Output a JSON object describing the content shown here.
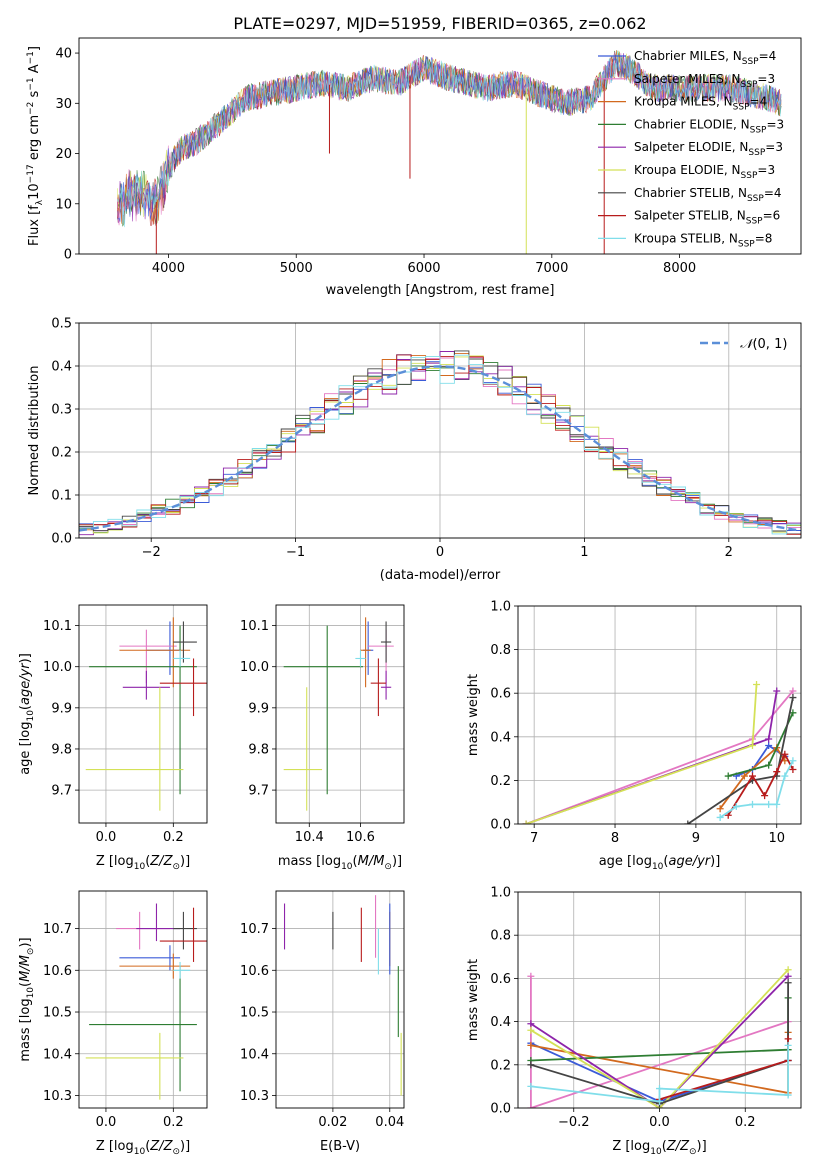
{
  "title": "PLATE=0297, MJD=51959, FIBERID=0365, z=0.062",
  "colors": {
    "Chabrier MILES": "#3b5bd8",
    "Salpeter MILES": "#e377c2",
    "Kroupa MILES": "#d2691e",
    "Chabrier ELODIE": "#2e7d32",
    "Salpeter ELODIE": "#8e24aa",
    "Kroupa ELODIE": "#d4e157",
    "Chabrier STELIB": "#444444",
    "Salpeter STELIB": "#b71c1c",
    "Kroupa STELIB": "#80deea",
    "gaussian": "#5b8fd8"
  },
  "chart_data": [
    {
      "type": "line",
      "title": "PLATE=0297, MJD=51959, FIBERID=0365, z=0.062",
      "xlabel": "wavelength [Angstrom, rest frame]",
      "ylabel": "Flux [fλ10⁻¹⁷ erg cm⁻² s⁻¹ A⁻¹]",
      "xlim": [
        3300,
        8950
      ],
      "ylim": [
        0,
        43
      ],
      "xticks": [
        4000,
        5000,
        6000,
        7000,
        8000
      ],
      "yticks": [
        0,
        10,
        20,
        30,
        40
      ],
      "legend_position": "right",
      "legend": [
        "Chabrier MILES, N_SSP=4",
        "Salpeter MILES, N_SSP=3",
        "Kroupa MILES, N_SSP=4",
        "Chabrier ELODIE, N_SSP=3",
        "Salpeter ELODIE, N_SSP=3",
        "Kroupa ELODIE, N_SSP=3",
        "Chabrier STELIB, N_SSP=4",
        "Salpeter STELIB, N_SSP=6",
        "Kroupa STELIB, N_SSP=8"
      ],
      "spectrum_envelope": [
        [
          3600,
          9
        ],
        [
          3700,
          12
        ],
        [
          3800,
          12
        ],
        [
          3900,
          10
        ],
        [
          4000,
          17
        ],
        [
          4100,
          21
        ],
        [
          4200,
          22
        ],
        [
          4300,
          24
        ],
        [
          4400,
          26
        ],
        [
          4600,
          31
        ],
        [
          4800,
          32
        ],
        [
          5000,
          33
        ],
        [
          5200,
          34
        ],
        [
          5400,
          33
        ],
        [
          5600,
          35
        ],
        [
          5800,
          34
        ],
        [
          6000,
          37
        ],
        [
          6200,
          35
        ],
        [
          6500,
          33
        ],
        [
          6700,
          34
        ],
        [
          6900,
          32
        ],
        [
          7100,
          30
        ],
        [
          7300,
          31
        ],
        [
          7500,
          38
        ],
        [
          7600,
          37
        ],
        [
          7800,
          33
        ],
        [
          8100,
          33
        ],
        [
          8400,
          33
        ],
        [
          8700,
          31
        ],
        [
          8800,
          30
        ]
      ],
      "series_wavelength_range": [
        3600,
        8800
      ]
    },
    {
      "type": "line",
      "xlabel": "(data-model)/error",
      "ylabel": "Normed distribution",
      "xlim": [
        -2.5,
        2.5
      ],
      "ylim": [
        0,
        0.5
      ],
      "xticks": [
        -2,
        -1,
        0,
        1,
        2
      ],
      "yticks": [
        0.0,
        0.1,
        0.2,
        0.3,
        0.4,
        0.5
      ],
      "legend": [
        "N(0,1)"
      ],
      "legend_position": "top-right",
      "histogram_bin_width": 0.1,
      "histograms": "one step histogram per fit, centred on the N(0,1) curve"
    },
    {
      "type": "scatter",
      "xlabel": "Z [log10(Z/Z⊙)]",
      "ylabel": "age  [log10(age/yr)]",
      "xlim": [
        -0.08,
        0.3
      ],
      "ylim": [
        9.62,
        10.15
      ],
      "xticks": [
        0.0,
        0.2
      ],
      "yticks": [
        9.7,
        9.8,
        9.9,
        10.0,
        10.1
      ],
      "points": [
        {
          "name": "Chabrier MILES",
          "x": 0.19,
          "y": 10.04,
          "xerr": [
            0.07,
            0.03
          ],
          "yerr": [
            0.06,
            0.07
          ]
        },
        {
          "name": "Salpeter MILES",
          "x": 0.12,
          "y": 10.05,
          "xerr": [
            0.08,
            0.09
          ],
          "yerr": [
            0.09,
            0.04
          ]
        },
        {
          "name": "Kroupa MILES",
          "x": 0.2,
          "y": 10.04,
          "xerr": [
            0.16,
            0.05
          ],
          "yerr": [
            0.09,
            0.08
          ]
        },
        {
          "name": "Chabrier ELODIE",
          "x": 0.22,
          "y": 10.0,
          "xerr": [
            0.27,
            0.05
          ],
          "yerr": [
            0.31,
            0.1
          ]
        },
        {
          "name": "Salpeter ELODIE",
          "x": 0.12,
          "y": 9.95,
          "xerr": [
            0.07,
            0.07
          ],
          "yerr": [
            0.03,
            0.04
          ]
        },
        {
          "name": "Kroupa ELODIE",
          "x": 0.16,
          "y": 9.75,
          "xerr": [
            0.22,
            0.07
          ],
          "yerr": [
            0.1,
            0.2
          ]
        },
        {
          "name": "Chabrier STELIB",
          "x": 0.23,
          "y": 10.06,
          "xerr": [
            0.03,
            0.04
          ],
          "yerr": [
            0.05,
            0.05
          ]
        },
        {
          "name": "Salpeter STELIB",
          "x": 0.26,
          "y": 9.96,
          "xerr": [
            0.1,
            0.05
          ],
          "yerr": [
            0.08,
            0.06
          ]
        },
        {
          "name": "Kroupa STELIB",
          "x": 0.22,
          "y": 10.02,
          "xerr": [
            0.02,
            0.03
          ],
          "yerr": [
            0.02,
            0.02
          ]
        }
      ]
    },
    {
      "type": "scatter",
      "xlabel": "mass [log10(M/M⊙)]",
      "ylabel": "",
      "xlim": [
        10.27,
        10.77
      ],
      "ylim": [
        9.62,
        10.15
      ],
      "xticks": [
        10.4,
        10.6
      ],
      "yticks": [
        9.7,
        9.8,
        9.9,
        10.0,
        10.1
      ],
      "points": [
        {
          "name": "Chabrier MILES",
          "x": 10.63,
          "y": 10.04,
          "xerr": [
            0.02,
            0.02
          ],
          "yerr": [
            0.06,
            0.07
          ]
        },
        {
          "name": "Salpeter MILES",
          "x": 10.7,
          "y": 10.05,
          "xerr": [
            0.07,
            0.03
          ],
          "yerr": [
            0.09,
            0.04
          ]
        },
        {
          "name": "Kroupa MILES",
          "x": 10.62,
          "y": 10.04,
          "xerr": [
            0.02,
            0.02
          ],
          "yerr": [
            0.09,
            0.08
          ]
        },
        {
          "name": "Chabrier ELODIE",
          "x": 10.47,
          "y": 10.0,
          "xerr": [
            0.17,
            0.14
          ],
          "yerr": [
            0.31,
            0.1
          ]
        },
        {
          "name": "Salpeter ELODIE",
          "x": 10.7,
          "y": 9.95,
          "xerr": [
            0.02,
            0.02
          ],
          "yerr": [
            0.03,
            0.04
          ]
        },
        {
          "name": "Kroupa ELODIE",
          "x": 10.39,
          "y": 9.75,
          "xerr": [
            0.09,
            0.06
          ],
          "yerr": [
            0.1,
            0.2
          ]
        },
        {
          "name": "Chabrier STELIB",
          "x": 10.7,
          "y": 10.06,
          "xerr": [
            0.02,
            0.02
          ],
          "yerr": [
            0.05,
            0.05
          ]
        },
        {
          "name": "Salpeter STELIB",
          "x": 10.67,
          "y": 9.96,
          "xerr": [
            0.03,
            0.03
          ],
          "yerr": [
            0.08,
            0.06
          ]
        },
        {
          "name": "Kroupa STELIB",
          "x": 10.6,
          "y": 10.02,
          "xerr": [
            0.02,
            0.02
          ],
          "yerr": [
            0.02,
            0.02
          ]
        }
      ]
    },
    {
      "type": "line",
      "xlabel": "age  [log10(age/yr)]",
      "ylabel": "mass weight",
      "xlim": [
        6.8,
        10.3
      ],
      "ylim": [
        0,
        1
      ],
      "xticks": [
        7,
        8,
        9,
        10
      ],
      "yticks": [
        0.0,
        0.2,
        0.4,
        0.6,
        0.8,
        1.0
      ],
      "series": [
        {
          "name": "Chabrier MILES",
          "x": [
            9.5,
            9.7,
            9.9,
            10.1
          ],
          "y": [
            0.22,
            0.25,
            0.36,
            0.31
          ]
        },
        {
          "name": "Salpeter MILES",
          "x": [
            6.9,
            9.7,
            10.2
          ],
          "y": [
            0.0,
            0.39,
            0.61
          ]
        },
        {
          "name": "Kroupa MILES",
          "x": [
            9.3,
            9.6,
            10.0,
            10.1
          ],
          "y": [
            0.07,
            0.22,
            0.35,
            0.29
          ]
        },
        {
          "name": "Chabrier ELODIE",
          "x": [
            9.4,
            9.9,
            10.2
          ],
          "y": [
            0.22,
            0.27,
            0.51
          ]
        },
        {
          "name": "Salpeter ELODIE",
          "x": [
            6.9,
            9.9,
            10.0
          ],
          "y": [
            0.0,
            0.39,
            0.61
          ]
        },
        {
          "name": "Kroupa ELODIE",
          "x": [
            6.9,
            9.7,
            9.75
          ],
          "y": [
            0.0,
            0.36,
            0.64
          ]
        },
        {
          "name": "Chabrier STELIB",
          "x": [
            8.9,
            9.7,
            10.0,
            10.2
          ],
          "y": [
            0.0,
            0.2,
            0.22,
            0.58
          ]
        },
        {
          "name": "Salpeter STELIB",
          "x": [
            9.4,
            9.7,
            9.85,
            10.0,
            10.1,
            10.2
          ],
          "y": [
            0.04,
            0.22,
            0.13,
            0.24,
            0.32,
            0.25
          ]
        },
        {
          "name": "Kroupa STELIB",
          "x": [
            9.3,
            9.5,
            9.7,
            9.9,
            10.0,
            10.1,
            10.2
          ],
          "y": [
            0.03,
            0.08,
            0.09,
            0.09,
            0.09,
            0.22,
            0.29
          ]
        }
      ]
    },
    {
      "type": "scatter",
      "xlabel": "Z [log10(Z/Z⊙)]",
      "ylabel": "mass [log10(M/M⊙)]",
      "xlim": [
        -0.08,
        0.3
      ],
      "ylim": [
        10.27,
        10.79
      ],
      "xticks": [
        0.0,
        0.2
      ],
      "yticks": [
        10.3,
        10.4,
        10.5,
        10.6,
        10.7
      ],
      "points": [
        {
          "name": "Chabrier MILES",
          "x": 0.19,
          "y": 10.63,
          "xerr": [
            0.15,
            0.03
          ],
          "yerr": [
            0.03,
            0.03
          ]
        },
        {
          "name": "Salpeter MILES",
          "x": 0.1,
          "y": 10.7,
          "xerr": [
            0.07,
            0.09
          ],
          "yerr": [
            0.05,
            0.04
          ]
        },
        {
          "name": "Kroupa MILES",
          "x": 0.2,
          "y": 10.61,
          "xerr": [
            0.16,
            0.05
          ],
          "yerr": [
            0.03,
            0.03
          ]
        },
        {
          "name": "Chabrier ELODIE",
          "x": 0.22,
          "y": 10.47,
          "xerr": [
            0.27,
            0.05
          ],
          "yerr": [
            0.16,
            0.14
          ]
        },
        {
          "name": "Salpeter ELODIE",
          "x": 0.15,
          "y": 10.7,
          "xerr": [
            0.06,
            0.07
          ],
          "yerr": [
            0.03,
            0.06
          ]
        },
        {
          "name": "Kroupa ELODIE",
          "x": 0.16,
          "y": 10.39,
          "xerr": [
            0.22,
            0.07
          ],
          "yerr": [
            0.1,
            0.06
          ]
        },
        {
          "name": "Chabrier STELIB",
          "x": 0.23,
          "y": 10.7,
          "xerr": [
            0.03,
            0.04
          ],
          "yerr": [
            0.05,
            0.04
          ]
        },
        {
          "name": "Salpeter STELIB",
          "x": 0.26,
          "y": 10.67,
          "xerr": [
            0.1,
            0.05
          ],
          "yerr": [
            0.05,
            0.08
          ]
        },
        {
          "name": "Kroupa STELIB",
          "x": 0.22,
          "y": 10.6,
          "xerr": [
            0.02,
            0.03
          ],
          "yerr": [
            0.02,
            0.02
          ]
        }
      ]
    },
    {
      "type": "scatter",
      "xlabel": "E(B-V)",
      "ylabel": "",
      "xlim": [
        0.0,
        0.045
      ],
      "ylim": [
        10.27,
        10.79
      ],
      "xticks": [
        0.02,
        0.04
      ],
      "yticks": [
        10.3,
        10.4,
        10.5,
        10.6,
        10.7
      ],
      "points": [
        {
          "name": "Salpeter ELODIE",
          "x": 0.003,
          "y": 10.7,
          "yerr": [
            0.05,
            0.06
          ]
        },
        {
          "name": "Chabrier STELIB",
          "x": 0.02,
          "y": 10.7,
          "yerr": [
            0.05,
            0.04
          ]
        },
        {
          "name": "Salpeter STELIB",
          "x": 0.03,
          "y": 10.67,
          "yerr": [
            0.05,
            0.08
          ]
        },
        {
          "name": "Salpeter MILES",
          "x": 0.035,
          "y": 10.7,
          "yerr": [
            0.07,
            0.08
          ]
        },
        {
          "name": "Kroupa STELIB",
          "x": 0.036,
          "y": 10.65,
          "yerr": [
            0.06,
            0.05
          ]
        },
        {
          "name": "Kroupa MILES",
          "x": 0.04,
          "y": 10.68,
          "yerr": [
            0.07,
            0.06
          ]
        },
        {
          "name": "Chabrier MILES",
          "x": 0.04,
          "y": 10.63,
          "yerr": [
            0.04,
            0.13
          ]
        },
        {
          "name": "Chabrier ELODIE",
          "x": 0.043,
          "y": 10.47,
          "yerr": [
            0.03,
            0.14
          ]
        },
        {
          "name": "Kroupa ELODIE",
          "x": 0.044,
          "y": 10.39,
          "yerr": [
            0.09,
            0.06
          ]
        }
      ]
    },
    {
      "type": "line",
      "xlabel": "Z [log10(Z/Z⊙)]",
      "ylabel": "mass weight",
      "xlim": [
        -0.33,
        0.33
      ],
      "ylim": [
        0,
        1
      ],
      "xticks": [
        -0.2,
        0.0,
        0.2
      ],
      "yticks": [
        0.0,
        0.2,
        0.4,
        0.6,
        0.8,
        1.0
      ],
      "series": [
        {
          "name": "Chabrier MILES",
          "x": [
            -0.3,
            0.0,
            0.3
          ],
          "y": [
            0.3,
            0.03,
            0.22
          ]
        },
        {
          "name": "Salpeter MILES",
          "x": [
            -0.3,
            -0.3,
            0.3
          ],
          "y": [
            0.61,
            0.0,
            0.4
          ]
        },
        {
          "name": "Kroupa MILES",
          "x": [
            -0.3,
            0.3,
            0.3
          ],
          "y": [
            0.29,
            0.07,
            0.35
          ]
        },
        {
          "name": "Chabrier ELODIE",
          "x": [
            -0.3,
            0.3,
            0.3
          ],
          "y": [
            0.22,
            0.27,
            0.51
          ]
        },
        {
          "name": "Salpeter ELODIE",
          "x": [
            -0.3,
            0.0,
            0.3
          ],
          "y": [
            0.39,
            0.0,
            0.61
          ]
        },
        {
          "name": "Kroupa ELODIE",
          "x": [
            -0.3,
            0.0,
            0.3
          ],
          "y": [
            0.36,
            0.0,
            0.64
          ]
        },
        {
          "name": "Chabrier STELIB",
          "x": [
            -0.3,
            0.0,
            0.3,
            0.3
          ],
          "y": [
            0.2,
            0.02,
            0.22,
            0.58
          ]
        },
        {
          "name": "Salpeter STELIB",
          "x": [
            0.0,
            0.3,
            0.3
          ],
          "y": [
            0.04,
            0.22,
            0.32
          ]
        },
        {
          "name": "Kroupa STELIB",
          "x": [
            -0.3,
            0.0,
            0.0,
            0.3,
            0.3
          ],
          "y": [
            0.1,
            0.03,
            0.09,
            0.06,
            0.29
          ]
        }
      ]
    }
  ]
}
